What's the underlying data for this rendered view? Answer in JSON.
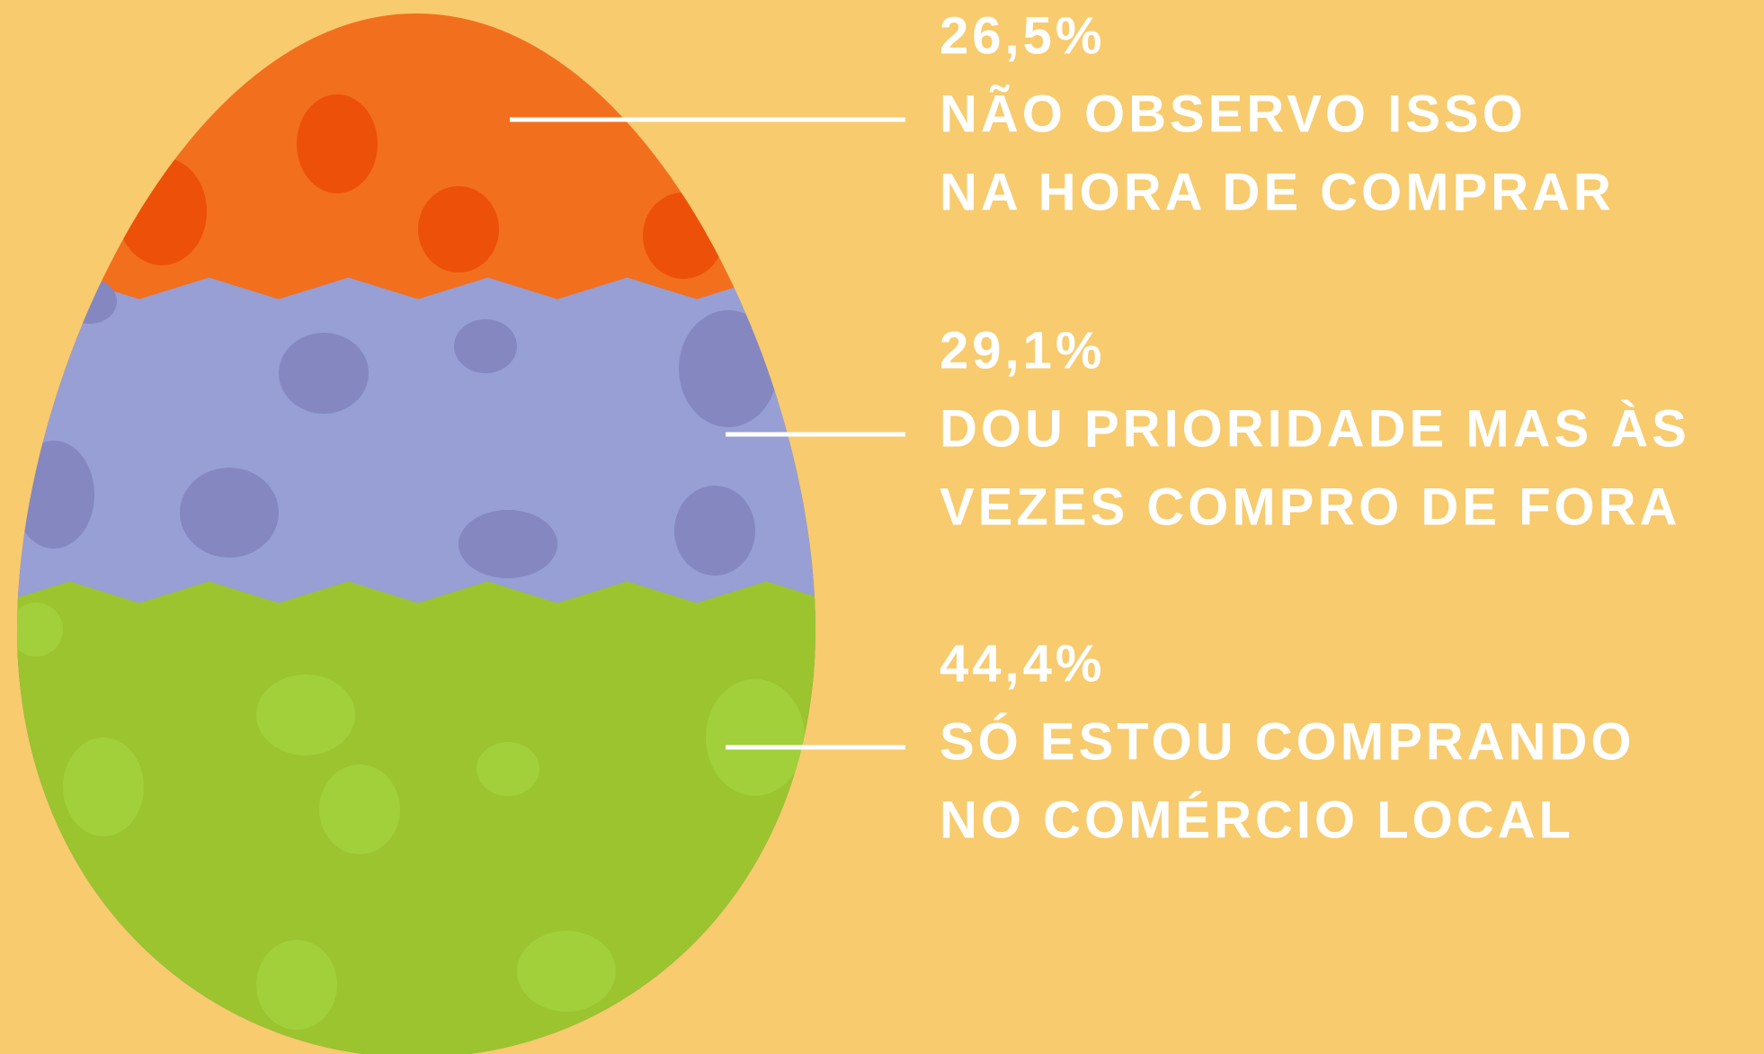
{
  "chart_data": {
    "type": "egg",
    "categories": [
      [
        "NÃO OBSERVO ISSO",
        "NA HORA DE COMPRAR"
      ],
      [
        "DOU PRIORIDADE MAS ÀS",
        "VEZES COMPRO DE FORA"
      ],
      [
        "SÓ ESTOU COMPRANDO",
        "NO COMÉRCIO LOCAL"
      ]
    ],
    "values": [
      26.5,
      29.1,
      44.4
    ],
    "value_labels": [
      "26,5%",
      "29,1%",
      "44,4%"
    ],
    "colors": [
      "#f26f1e",
      "#979fd4",
      "#9bc42f"
    ]
  }
}
